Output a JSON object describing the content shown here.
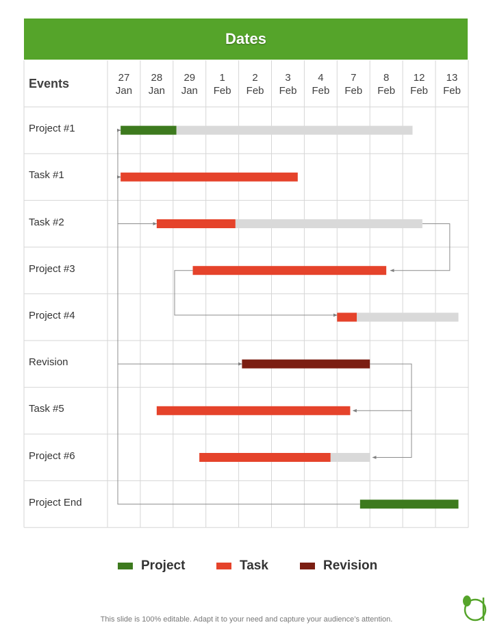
{
  "header": {
    "title": "Dates"
  },
  "table": {
    "events_label": "Events"
  },
  "chart_data": {
    "type": "gantt",
    "dates": [
      {
        "day": "27",
        "month": "Jan"
      },
      {
        "day": "28",
        "month": "Jan"
      },
      {
        "day": "29",
        "month": "Jan"
      },
      {
        "day": "1",
        "month": "Feb"
      },
      {
        "day": "2",
        "month": "Feb"
      },
      {
        "day": "3",
        "month": "Feb"
      },
      {
        "day": "4",
        "month": "Feb"
      },
      {
        "day": "7",
        "month": "Feb"
      },
      {
        "day": "8",
        "month": "Feb"
      },
      {
        "day": "12",
        "month": "Feb"
      },
      {
        "day": "13",
        "month": "Feb"
      }
    ],
    "events": [
      {
        "label": "Project #1",
        "type": "Project",
        "start": 0.4,
        "progress_end": 2.1,
        "end": 9.3
      },
      {
        "label": "Task #1",
        "type": "Task",
        "start": 0.4,
        "end": 5.8
      },
      {
        "label": "Task #2",
        "type": "Task",
        "start": 1.5,
        "progress_end": 3.9,
        "end": 9.6
      },
      {
        "label": "Project #3",
        "type": "Task",
        "start": 2.6,
        "end": 8.5
      },
      {
        "label": "Project #4",
        "type": "Task",
        "start": 7.0,
        "progress_end": 7.6,
        "end": 10.7
      },
      {
        "label": "Revision",
        "type": "Revision",
        "start": 4.1,
        "end": 8.0
      },
      {
        "label": "Task #5",
        "type": "Task",
        "start": 1.5,
        "end": 7.4
      },
      {
        "label": "Project #6",
        "type": "Task",
        "start": 2.8,
        "progress_end": 6.8,
        "end": 8.0
      },
      {
        "label": "Project End",
        "type": "Project",
        "start": 7.7,
        "end": 10.7
      }
    ],
    "legend": [
      {
        "name": "Project",
        "color": "#3d7a1e"
      },
      {
        "name": "Task",
        "color": "#e5432b"
      },
      {
        "name": "Revision",
        "color": "#7b1e12"
      }
    ],
    "remaining_color": "#d9d9d9"
  },
  "footer": {
    "text": "This slide is 100% editable. Adapt it to your need and capture your audience’s attention."
  }
}
